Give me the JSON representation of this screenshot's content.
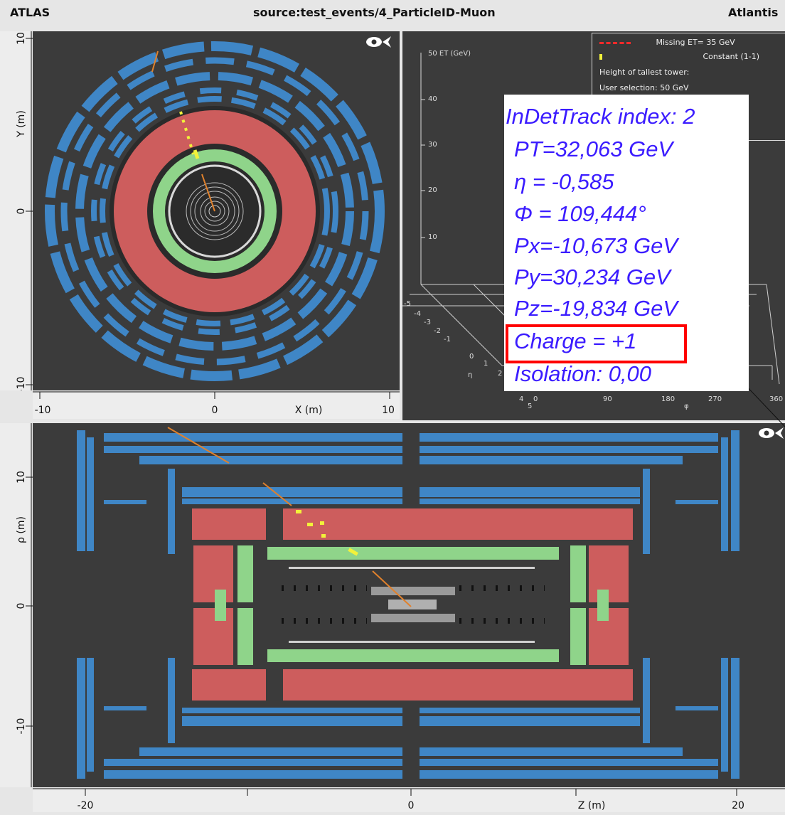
{
  "titlebar": {
    "left": "ATLAS",
    "center": "source:test_events/4_ParticleID-Muon",
    "right": "Atlantis"
  },
  "xy_view": {
    "x_axis_ticks": [
      "-10",
      "0",
      "X (m)",
      "10"
    ],
    "y_axis_ticks": [
      "10",
      "Y (m)",
      "0",
      "-10"
    ]
  },
  "lego_view": {
    "et_labels": [
      "50 ET (GeV)",
      "40",
      "30",
      "20",
      "10"
    ],
    "eta_ticks": [
      "-5",
      "-4",
      "-3",
      "-2",
      "-1",
      "0",
      "1",
      "2",
      "4",
      "5"
    ],
    "eta_label": "η",
    "phi_ticks": [
      "0",
      "90",
      "180",
      "270",
      "360"
    ],
    "phi_label": "φ",
    "legend": {
      "missing_et": "Missing ET= 35 GeV",
      "constant": "Constant (1-1)",
      "height_label": "Height of tallest tower:",
      "user_selection": "User selection: 50 GeV"
    }
  },
  "rz_view": {
    "z_axis_ticks": [
      "-20",
      "0",
      "Z (m)",
      "20"
    ],
    "rho_axis_ticks": [
      "10",
      "ρ (m)",
      "0",
      "-10"
    ]
  },
  "track_info": {
    "title": "InDetTrack index: 2",
    "pt": "PT=32,063 GeV",
    "eta": "η = -0,585",
    "phi": "Φ = 109,444°",
    "px": "Px=-10,673 GeV",
    "py": "Py=30,234 GeV",
    "pz": "Pz=-19,834 GeV",
    "charge": "Charge = +1",
    "isolation": "Isolation: 0,00"
  },
  "colors": {
    "muon_chamber": "#3f86c6",
    "hadronic_calorimeter": "#cd5d5d",
    "em_calorimeter": "#8fd48a",
    "track": "#e0812c",
    "muon_hit": "#f2f23a",
    "background": "#3b3b3b",
    "popup_text": "#3b1cff",
    "highlight": "#ff0000"
  }
}
